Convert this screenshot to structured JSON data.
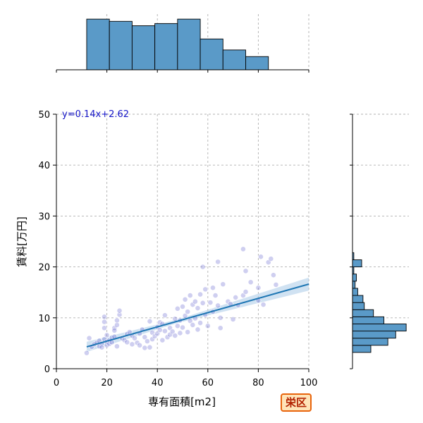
{
  "badge": "栄区",
  "chart_data": {
    "type": "scatter",
    "xlabel": "専有面積[m2]",
    "ylabel": "賃料[万円]",
    "equation": "y=0.14x+2.62",
    "xlim": [
      0,
      100
    ],
    "ylim": [
      0,
      50
    ],
    "xticks": [
      0,
      20,
      40,
      60,
      80,
      100
    ],
    "yticks": [
      0,
      10,
      20,
      30,
      40,
      50
    ],
    "grid": true,
    "colors": {
      "points": "#6a6ad0",
      "regression": "#1f77b4",
      "ci": "#aacbe8",
      "hist": "#5a9ac8"
    },
    "regression": {
      "slope": 0.14,
      "intercept": 2.62,
      "x_range": [
        12,
        100
      ]
    },
    "points": [
      [
        12,
        3.1
      ],
      [
        13,
        6.0
      ],
      [
        14,
        4.3
      ],
      [
        15,
        4.8
      ],
      [
        16,
        5.1
      ],
      [
        17,
        4.4
      ],
      [
        17,
        5.5
      ],
      [
        18,
        4.9
      ],
      [
        18,
        4.2
      ],
      [
        19,
        5.8
      ],
      [
        19,
        8.0
      ],
      [
        19,
        9.2
      ],
      [
        19,
        10.2
      ],
      [
        20,
        4.6
      ],
      [
        20,
        5.3
      ],
      [
        20,
        6.6
      ],
      [
        21,
        4.9
      ],
      [
        21,
        5.6
      ],
      [
        22,
        5.2
      ],
      [
        22,
        6.1
      ],
      [
        23,
        8.0
      ],
      [
        23,
        7.5
      ],
      [
        23,
        6.3
      ],
      [
        24,
        8.6
      ],
      [
        24,
        9.5
      ],
      [
        24,
        4.4
      ],
      [
        25,
        10.6
      ],
      [
        25,
        11.4
      ],
      [
        26,
        6.0
      ],
      [
        27,
        5.6
      ],
      [
        28,
        6.8
      ],
      [
        28,
        5.2
      ],
      [
        29,
        7.2
      ],
      [
        30,
        4.8
      ],
      [
        30,
        6.5
      ],
      [
        31,
        6.0
      ],
      [
        32,
        5.1
      ],
      [
        33,
        6.9
      ],
      [
        33,
        4.6
      ],
      [
        34,
        7.7
      ],
      [
        35,
        4.1
      ],
      [
        35,
        6.2
      ],
      [
        36,
        5.4
      ],
      [
        37,
        9.3
      ],
      [
        37,
        4.2
      ],
      [
        38,
        7.1
      ],
      [
        38,
        5.8
      ],
      [
        39,
        6.4
      ],
      [
        40,
        8.2
      ],
      [
        40,
        6.9
      ],
      [
        41,
        9.1
      ],
      [
        41,
        7.6
      ],
      [
        42,
        5.6
      ],
      [
        42,
        8.8
      ],
      [
        43,
        7.4
      ],
      [
        43,
        10.5
      ],
      [
        44,
        6.2
      ],
      [
        45,
        8.0
      ],
      [
        45,
        6.7
      ],
      [
        46,
        7.3
      ],
      [
        47,
        9.8
      ],
      [
        47,
        6.5
      ],
      [
        48,
        8.4
      ],
      [
        48,
        11.8
      ],
      [
        49,
        7.0
      ],
      [
        49,
        9.5
      ],
      [
        50,
        12.2
      ],
      [
        50,
        8.1
      ],
      [
        51,
        13.6
      ],
      [
        51,
        10.4
      ],
      [
        52,
        7.2
      ],
      [
        52,
        11.2
      ],
      [
        53,
        9.4
      ],
      [
        53,
        14.4
      ],
      [
        54,
        8.6
      ],
      [
        54,
        12.6
      ],
      [
        55,
        13.2
      ],
      [
        55,
        9.9
      ],
      [
        56,
        7.7
      ],
      [
        56,
        11.9
      ],
      [
        57,
        14.6
      ],
      [
        57,
        9.0
      ],
      [
        58,
        12.9
      ],
      [
        58,
        20.0
      ],
      [
        59,
        15.6
      ],
      [
        59,
        10.6
      ],
      [
        60,
        8.4
      ],
      [
        61,
        13.0
      ],
      [
        62,
        15.9
      ],
      [
        62,
        11.2
      ],
      [
        63,
        14.4
      ],
      [
        64,
        21.0
      ],
      [
        64,
        12.4
      ],
      [
        65,
        8.0
      ],
      [
        65,
        10.0
      ],
      [
        66,
        16.6
      ],
      [
        68,
        13.2
      ],
      [
        69,
        12.7
      ],
      [
        70,
        9.7
      ],
      [
        71,
        14.0
      ],
      [
        72,
        12.5
      ],
      [
        74,
        23.5
      ],
      [
        74,
        14.4
      ],
      [
        75,
        19.2
      ],
      [
        75,
        15.1
      ],
      [
        77,
        17.0
      ],
      [
        80,
        15.9
      ],
      [
        80,
        13.4
      ],
      [
        81,
        22.0
      ],
      [
        82,
        12.6
      ],
      [
        84,
        20.9
      ],
      [
        85,
        21.6
      ],
      [
        86,
        18.4
      ],
      [
        87,
        16.5
      ]
    ],
    "top_histogram": {
      "bins": [
        [
          12,
          21,
          23
        ],
        [
          21,
          30,
          22
        ],
        [
          30,
          39,
          20
        ],
        [
          39,
          48,
          21
        ],
        [
          48,
          57,
          23
        ],
        [
          57,
          66,
          14
        ],
        [
          66,
          75,
          9
        ],
        [
          75,
          84,
          6
        ]
      ]
    },
    "right_histogram": {
      "bins": [
        [
          3.2,
          4.6,
          14
        ],
        [
          4.6,
          6.0,
          27
        ],
        [
          6.0,
          7.4,
          33
        ],
        [
          7.4,
          8.8,
          41
        ],
        [
          8.8,
          10.2,
          24
        ],
        [
          10.2,
          11.6,
          16
        ],
        [
          11.6,
          13.0,
          9
        ],
        [
          13.0,
          14.4,
          8
        ],
        [
          14.4,
          15.8,
          4
        ],
        [
          15.8,
          17.2,
          2
        ],
        [
          17.2,
          18.6,
          3
        ],
        [
          18.6,
          20.0,
          1
        ],
        [
          20.0,
          21.4,
          7
        ],
        [
          21.4,
          22.8,
          1
        ]
      ]
    }
  }
}
